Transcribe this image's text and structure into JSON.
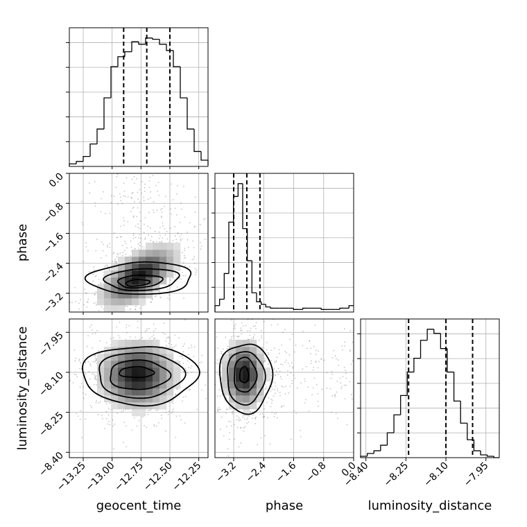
{
  "chart_data": {
    "type": "corner",
    "parameters": [
      "geocent_time",
      "phase",
      "luminosity_distance"
    ],
    "axes": {
      "geocent_time": {
        "label": "geocent_time",
        "range": [
          -13.37,
          -12.17
        ],
        "ticks": [
          -13.25,
          -13.0,
          -12.75,
          -12.5,
          -12.25
        ],
        "tick_labels": [
          "−13.25",
          "−13.00",
          "−12.75",
          "−12.50",
          "−12.25"
        ],
        "quantiles": [
          -12.9,
          -12.7,
          -12.5
        ],
        "hist": {
          "edges_start": -13.37,
          "bin_width": 0.06,
          "counts": [
            0.02,
            0.04,
            0.08,
            0.18,
            0.3,
            0.55,
            0.8,
            0.88,
            0.92,
            1.0,
            0.98,
            1.03,
            1.02,
            0.98,
            0.93,
            0.8,
            0.55,
            0.3,
            0.12,
            0.05,
            0.01
          ]
        }
      },
      "phase": {
        "label": "phase",
        "range": [
          -3.7,
          0.0
        ],
        "ticks": [
          -3.2,
          -2.4,
          -1.6,
          -0.8,
          0.0
        ],
        "tick_labels": [
          "−3.2",
          "−2.4",
          "−1.6",
          "−0.8",
          "0.0"
        ],
        "quantiles": [
          -3.2,
          -2.85,
          -2.5
        ],
        "hist": {
          "edges_start": -3.7,
          "bin_width": 0.1233,
          "counts": [
            0.05,
            0.1,
            0.3,
            0.7,
            0.9,
            1.0,
            0.65,
            0.4,
            0.15,
            0.08,
            0.06,
            0.04,
            0.03,
            0.03,
            0.03,
            0.03,
            0.03,
            0.02,
            0.02,
            0.03,
            0.03,
            0.03,
            0.03,
            0.02,
            0.02,
            0.02,
            0.02,
            0.03,
            0.03,
            0.05
          ]
        }
      },
      "luminosity_distance": {
        "label": "luminosity_distance",
        "range": [
          -8.42,
          -7.9
        ],
        "ticks": [
          -8.4,
          -8.25,
          -8.1,
          -7.95
        ],
        "tick_labels": [
          "−8.40",
          "−8.25",
          "−8.10",
          "−7.95"
        ],
        "quantiles": [
          -8.24,
          -8.1,
          -8.0
        ],
        "hist": {
          "edges_start": -8.42,
          "bin_width": 0.025,
          "counts": [
            0.01,
            0.03,
            0.05,
            0.09,
            0.18,
            0.31,
            0.45,
            0.62,
            0.72,
            0.85,
            0.93,
            0.9,
            0.79,
            0.62,
            0.41,
            0.25,
            0.13,
            0.05,
            0.02,
            0.01,
            0.0
          ]
        }
      }
    },
    "pairs": [
      {
        "x": "geocent_time",
        "y": "phase",
        "center": [
          -12.77,
          -2.75
        ],
        "sigma": [
          0.18,
          0.45
        ],
        "correlation": 0.6,
        "contours": [
          {
            "center": [
              -12.75,
              -2.8
            ],
            "semi_axes": [
              0.46,
              0.42
            ],
            "angle_deg": 28
          },
          {
            "center": [
              -12.74,
              -2.83
            ],
            "semi_axes": [
              0.33,
              0.28
            ],
            "angle_deg": 28
          },
          {
            "center": [
              -12.76,
              -2.88
            ],
            "semi_axes": [
              0.2,
              0.16
            ],
            "angle_deg": 28
          },
          {
            "center": [
              -12.78,
              -2.92
            ],
            "semi_axes": [
              0.11,
              0.08
            ],
            "angle_deg": 28
          }
        ]
      },
      {
        "x": "geocent_time",
        "y": "luminosity_distance",
        "center": [
          -12.78,
          -8.11
        ],
        "sigma": [
          0.18,
          0.07
        ],
        "correlation": 0.0,
        "contours": [
          {
            "center": [
              -12.76,
              -8.11
            ],
            "semi_axes": [
              0.5,
              0.11
            ],
            "angle_deg": 0
          },
          {
            "center": [
              -12.76,
              -8.11
            ],
            "semi_axes": [
              0.37,
              0.085
            ],
            "angle_deg": 0
          },
          {
            "center": [
              -12.77,
              -8.11
            ],
            "semi_axes": [
              0.26,
              0.055
            ],
            "angle_deg": 0
          },
          {
            "center": [
              -12.79,
              -8.1
            ],
            "semi_axes": [
              0.15,
              0.02
            ],
            "angle_deg": 0
          }
        ]
      },
      {
        "x": "phase",
        "y": "luminosity_distance",
        "center": [
          -2.92,
          -8.11
        ],
        "sigma": [
          0.3,
          0.07
        ],
        "correlation": 0.0,
        "contours": [
          {
            "center": [
              -2.88,
              -8.12
            ],
            "semi_axes": [
              0.7,
              0.13
            ],
            "angle_deg": 0
          },
          {
            "center": [
              -2.89,
              -8.12
            ],
            "semi_axes": [
              0.5,
              0.1
            ],
            "angle_deg": 0
          },
          {
            "center": [
              -2.9,
              -8.11
            ],
            "semi_axes": [
              0.3,
              0.065
            ],
            "angle_deg": 0
          },
          {
            "center": [
              -2.92,
              -8.11
            ],
            "semi_axes": [
              0.12,
              0.03
            ],
            "angle_deg": 0
          }
        ]
      }
    ],
    "grid": true
  }
}
